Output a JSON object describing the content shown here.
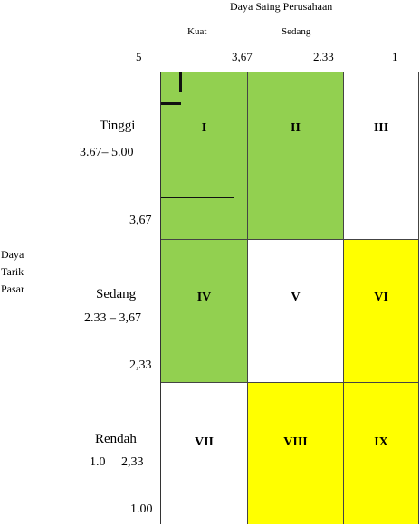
{
  "header": {
    "title": "Daya Saing Perusahaan",
    "columns": [
      "Kuat",
      "Sedang"
    ],
    "scale": [
      "5",
      "3,67",
      "2.33",
      "1"
    ]
  },
  "y_axis": {
    "title_lines": [
      "Daya",
      "Tarik",
      "Pasar"
    ],
    "rows": [
      {
        "name": "Tinggi",
        "range": "3.67– 5.00",
        "lower": "3,67"
      },
      {
        "name": "Sedang",
        "range": "2.33 – 3,67",
        "lower": "2,33"
      },
      {
        "name": "Rendah",
        "range_a": "1.0",
        "range_b": "2,33",
        "lower": "1.00"
      }
    ]
  },
  "colors": {
    "green": "#92d050",
    "yellow": "#ffff00",
    "white": "#ffffff"
  },
  "cells": [
    {
      "label": "I",
      "color": "green"
    },
    {
      "label": "II",
      "color": "green"
    },
    {
      "label": "III",
      "color": "white"
    },
    {
      "label": "IV",
      "color": "green"
    },
    {
      "label": "V",
      "color": "white"
    },
    {
      "label": "VI",
      "color": "yellow"
    },
    {
      "label": "VII",
      "color": "white"
    },
    {
      "label": "VIII",
      "color": "yellow"
    },
    {
      "label": "IX",
      "color": "yellow"
    }
  ]
}
